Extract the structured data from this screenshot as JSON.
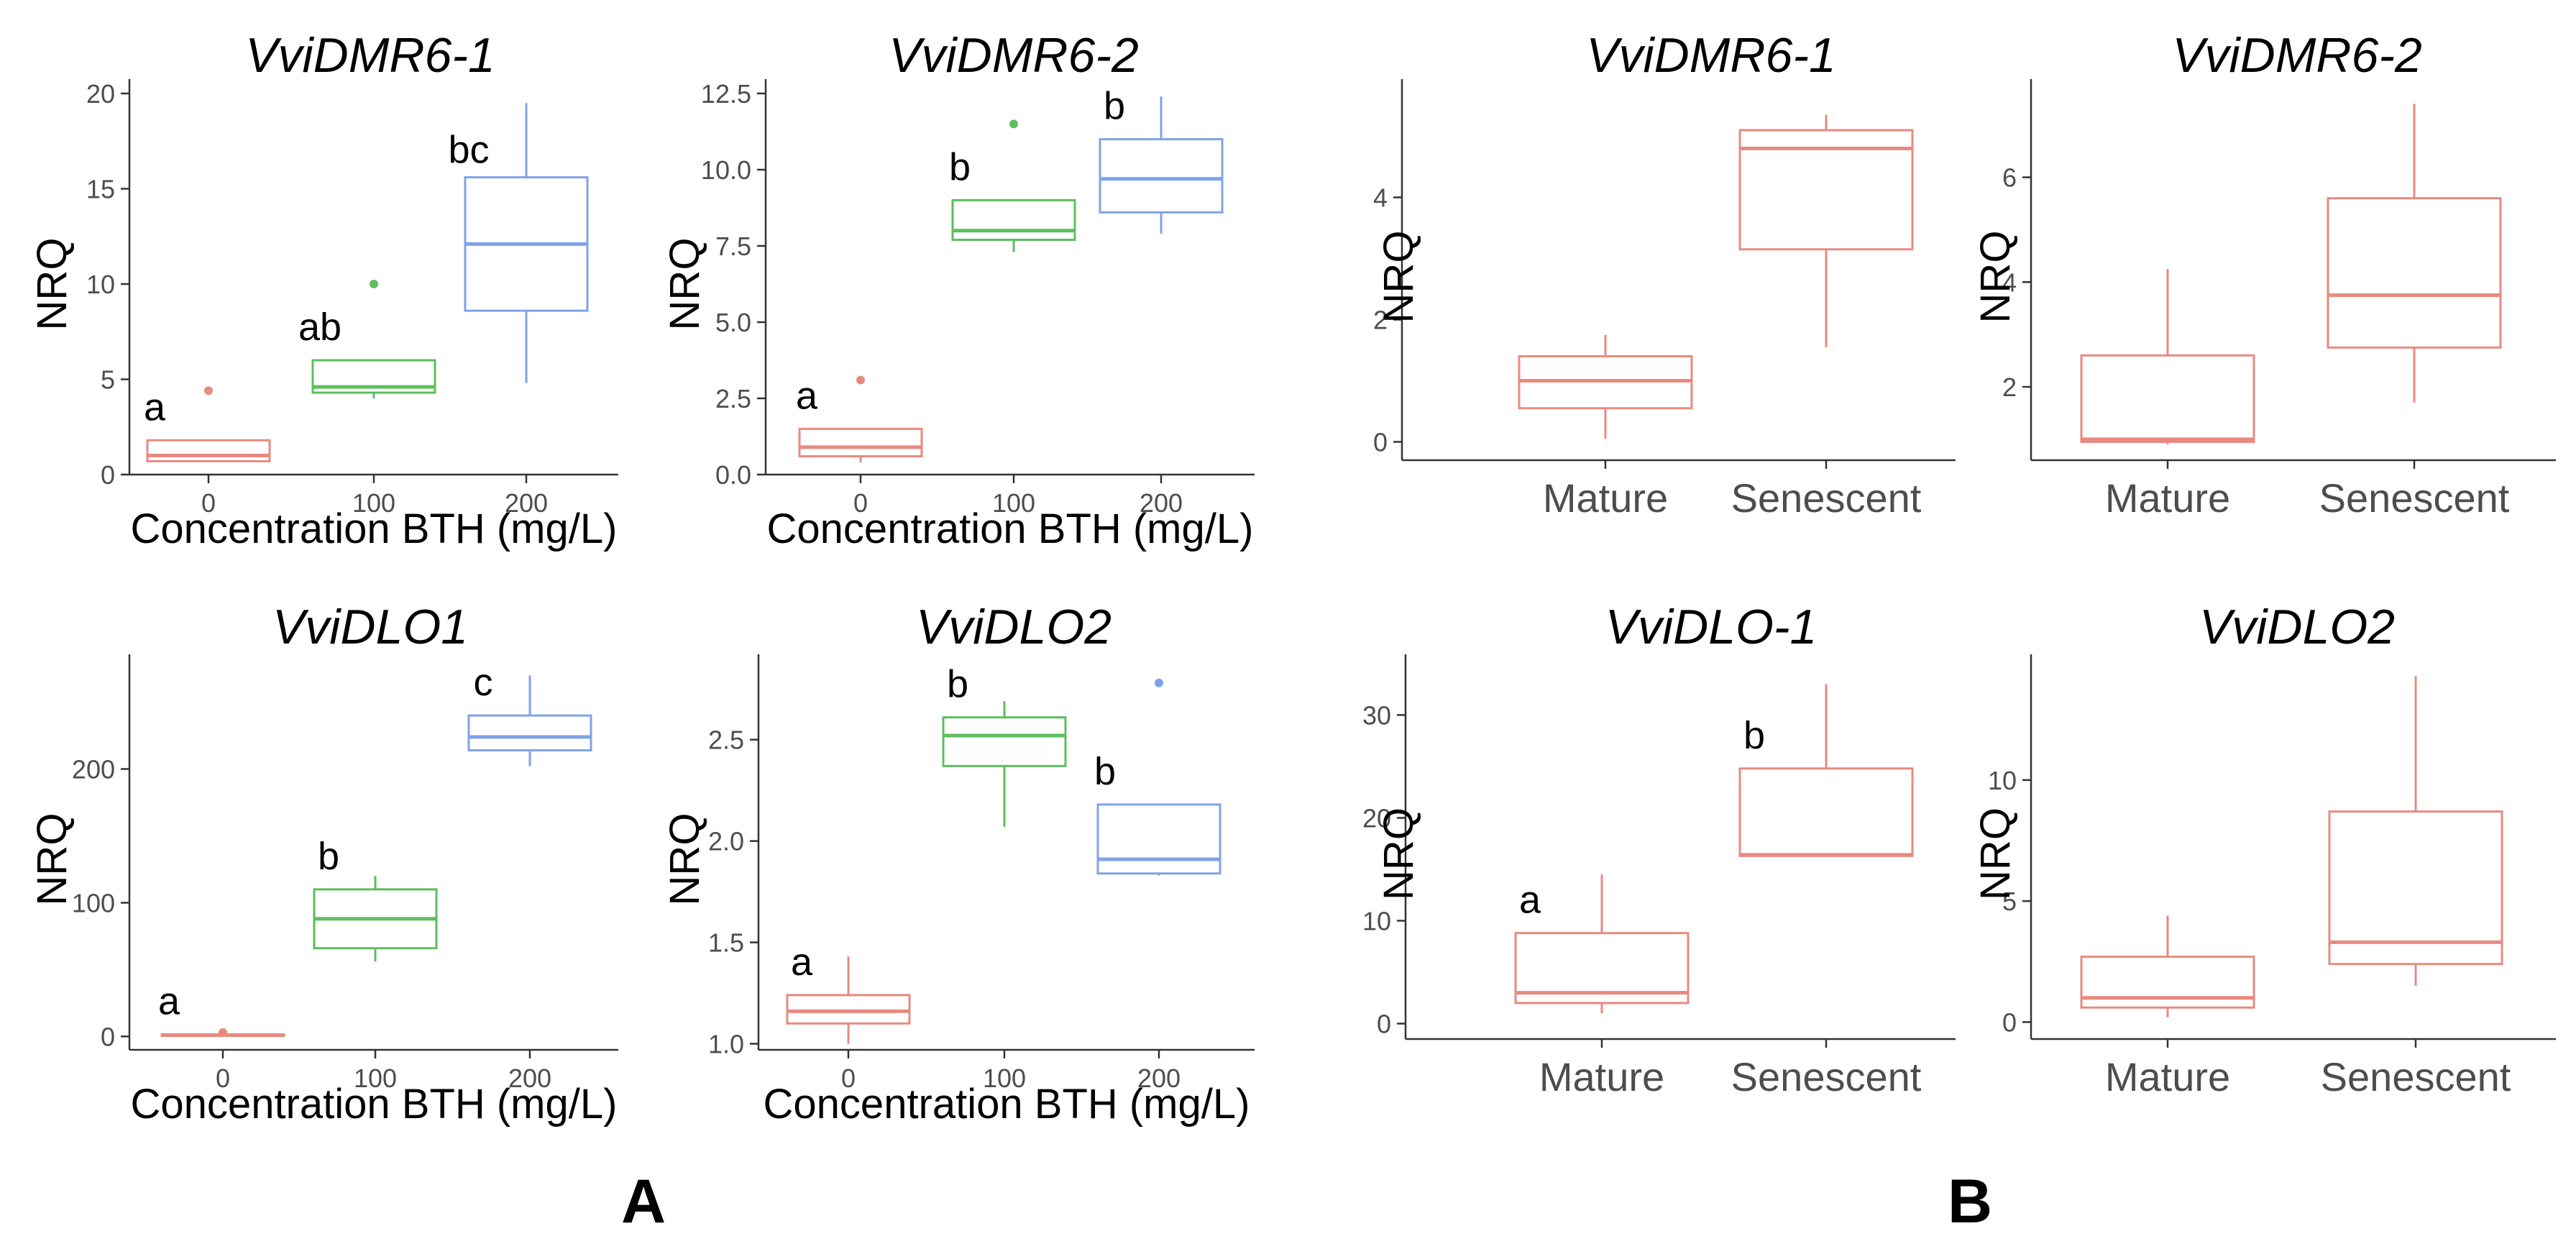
{
  "panel_labels": [
    "A",
    "B"
  ],
  "colors": {
    "c0": "#E88A80",
    "c100": "#5DBE5D",
    "c200": "#7FA3E8"
  },
  "chart_data": [
    {
      "type": "box",
      "panel": "A",
      "title": "VviDMR6-1",
      "xlabel": "Concentration BTH (mg/L)",
      "ylabel": "NRQ",
      "categories": [
        "0",
        "100",
        "200"
      ],
      "ylim": [
        0,
        20
      ],
      "yticks": [
        0,
        5,
        10,
        15,
        20
      ],
      "yticklabels": [
        "0",
        "5",
        "10",
        "15",
        "20"
      ],
      "boxes": [
        {
          "category": "0",
          "min": 0.7,
          "q1": 0.7,
          "median": 1.0,
          "q3": 1.8,
          "max": 1.8,
          "outliers": [
            4.4
          ],
          "letter": "a",
          "color": "#E88A80"
        },
        {
          "category": "100",
          "min": 4.0,
          "q1": 4.3,
          "median": 4.6,
          "q3": 6.0,
          "max": 6.0,
          "outliers": [
            10.0
          ],
          "letter": "ab",
          "color": "#5DBE5D"
        },
        {
          "category": "200",
          "min": 4.8,
          "q1": 8.6,
          "median": 12.1,
          "q3": 15.6,
          "max": 19.5,
          "outliers": [],
          "letter": "bc",
          "color": "#7FA3E8"
        }
      ]
    },
    {
      "type": "box",
      "panel": "A",
      "title": "VviDMR6-2",
      "xlabel": "Concentration BTH (mg/L)",
      "ylabel": "NRQ",
      "categories": [
        "0",
        "100",
        "200"
      ],
      "ylim": [
        0,
        12.5
      ],
      "yticks": [
        0,
        2.5,
        5,
        7.5,
        10,
        12.5
      ],
      "yticklabels": [
        "0.0",
        "2.5",
        "5.0",
        "7.5",
        "10.0",
        "12.5"
      ],
      "boxes": [
        {
          "category": "0",
          "min": 0.4,
          "q1": 0.6,
          "median": 0.9,
          "q3": 1.5,
          "max": 1.5,
          "outliers": [
            3.1
          ],
          "letter": "a",
          "color": "#E88A80"
        },
        {
          "category": "100",
          "min": 7.3,
          "q1": 7.7,
          "median": 8.0,
          "q3": 9.0,
          "max": 9.0,
          "outliers": [
            11.5
          ],
          "letter": "b",
          "color": "#5DBE5D"
        },
        {
          "category": "200",
          "min": 7.9,
          "q1": 8.6,
          "median": 9.7,
          "q3": 11.0,
          "max": 12.4,
          "outliers": [],
          "letter": "b",
          "color": "#7FA3E8"
        }
      ]
    },
    {
      "type": "box",
      "panel": "A",
      "title": "VviDLO1",
      "xlabel": "Concentration BTH (mg/L)",
      "ylabel": "NRQ",
      "categories": [
        "0",
        "100",
        "200"
      ],
      "ylim": [
        -10,
        275
      ],
      "yticks": [
        0,
        100,
        200
      ],
      "yticklabels": [
        "0",
        "100",
        "200"
      ],
      "boxes": [
        {
          "category": "0",
          "min": 0.5,
          "q1": 0.5,
          "median": 1,
          "q3": 1.5,
          "max": 1.5,
          "outliers": [
            3
          ],
          "letter": "a",
          "color": "#E88A80"
        },
        {
          "category": "100",
          "min": 56,
          "q1": 66,
          "median": 88,
          "q3": 110,
          "max": 120,
          "outliers": [],
          "letter": "b",
          "color": "#5DBE5D"
        },
        {
          "category": "200",
          "min": 202,
          "q1": 214,
          "median": 224,
          "q3": 240,
          "max": 270,
          "outliers": [],
          "letter": "c",
          "color": "#7FA3E8"
        }
      ]
    },
    {
      "type": "box",
      "panel": "A",
      "title": "VviDLO2",
      "xlabel": "Concentration BTH (mg/L)",
      "ylabel": "NRQ",
      "categories": [
        "0",
        "100",
        "200"
      ],
      "ylim": [
        0.97,
        2.85
      ],
      "yticks": [
        1.0,
        1.5,
        2.0,
        2.5
      ],
      "yticklabels": [
        "1.0",
        "1.5",
        "2.0",
        "2.5"
      ],
      "boxes": [
        {
          "category": "0",
          "min": 1.0,
          "q1": 1.1,
          "median": 1.16,
          "q3": 1.24,
          "max": 1.43,
          "outliers": [],
          "letter": "a",
          "color": "#E88A80"
        },
        {
          "category": "100",
          "min": 2.07,
          "q1": 2.37,
          "median": 2.52,
          "q3": 2.61,
          "max": 2.69,
          "outliers": [],
          "letter": "b",
          "color": "#5DBE5D"
        },
        {
          "category": "200",
          "min": 1.83,
          "q1": 1.84,
          "median": 1.91,
          "q3": 2.18,
          "max": 2.18,
          "outliers": [
            2.78
          ],
          "letter": "b",
          "color": "#7FA3E8"
        }
      ]
    },
    {
      "type": "box",
      "panel": "B",
      "title": "VviDMR6-1",
      "xlabel": "",
      "ylabel": "NRQ",
      "categories": [
        "Mature",
        "Senescent"
      ],
      "ylim": [
        -0.3,
        5.7
      ],
      "yticks": [
        0,
        2,
        4
      ],
      "yticklabels": [
        "0",
        "2",
        "4"
      ],
      "boxes": [
        {
          "category": "Mature",
          "min": 0.05,
          "q1": 0.55,
          "median": 1.0,
          "q3": 1.4,
          "max": 1.75,
          "outliers": [],
          "letter": "",
          "color": "#E88A80"
        },
        {
          "category": "Senescent",
          "min": 1.55,
          "q1": 3.15,
          "median": 4.8,
          "q3": 5.1,
          "max": 5.35,
          "outliers": [],
          "letter": "",
          "color": "#E88A80"
        }
      ]
    },
    {
      "type": "box",
      "panel": "B",
      "title": "VviDMR6-2",
      "xlabel": "",
      "ylabel": "NRQ",
      "categories": [
        "Mature",
        "Senescent"
      ],
      "ylim": [
        0.6,
        7.6
      ],
      "yticks": [
        2,
        4,
        6
      ],
      "yticklabels": [
        "2",
        "4",
        "6"
      ],
      "boxes": [
        {
          "category": "Mature",
          "min": 0.9,
          "q1": 0.95,
          "median": 1.0,
          "q3": 2.6,
          "max": 4.25,
          "outliers": [],
          "letter": "",
          "color": "#E88A80"
        },
        {
          "category": "Senescent",
          "min": 1.7,
          "q1": 2.75,
          "median": 3.75,
          "q3": 5.6,
          "max": 7.4,
          "outliers": [],
          "letter": "",
          "color": "#E88A80"
        }
      ]
    },
    {
      "type": "box",
      "panel": "B",
      "title": "VviDLO-1",
      "xlabel": "",
      "ylabel": "NRQ",
      "categories": [
        "Mature",
        "Senescent"
      ],
      "ylim": [
        -1.5,
        34.5
      ],
      "yticks": [
        0,
        10,
        20,
        30
      ],
      "yticklabels": [
        "0",
        "10",
        "20",
        "30"
      ],
      "boxes": [
        {
          "category": "Mature",
          "min": 1.0,
          "q1": 2.0,
          "median": 3.0,
          "q3": 8.8,
          "max": 14.5,
          "outliers": [],
          "letter": "a",
          "color": "#E88A80"
        },
        {
          "category": "Senescent",
          "min": 16.3,
          "q1": 16.3,
          "median": 16.4,
          "q3": 24.8,
          "max": 33.0,
          "outliers": [],
          "letter": "b",
          "color": "#E88A80"
        }
      ]
    },
    {
      "type": "box",
      "panel": "B",
      "title": "VviDLO2",
      "xlabel": "",
      "ylabel": "NRQ",
      "categories": [
        "Mature",
        "Senescent"
      ],
      "ylim": [
        -0.7,
        14.6
      ],
      "yticks": [
        0,
        5,
        10
      ],
      "yticklabels": [
        "0",
        "5",
        "10"
      ],
      "boxes": [
        {
          "category": "Mature",
          "min": 0.2,
          "q1": 0.6,
          "median": 1.0,
          "q3": 2.7,
          "max": 4.4,
          "outliers": [],
          "letter": "",
          "color": "#E88A80"
        },
        {
          "category": "Senescent",
          "min": 1.5,
          "q1": 2.4,
          "median": 3.3,
          "q3": 8.7,
          "max": 14.3,
          "outliers": [],
          "letter": "",
          "color": "#E88A80"
        }
      ]
    }
  ]
}
